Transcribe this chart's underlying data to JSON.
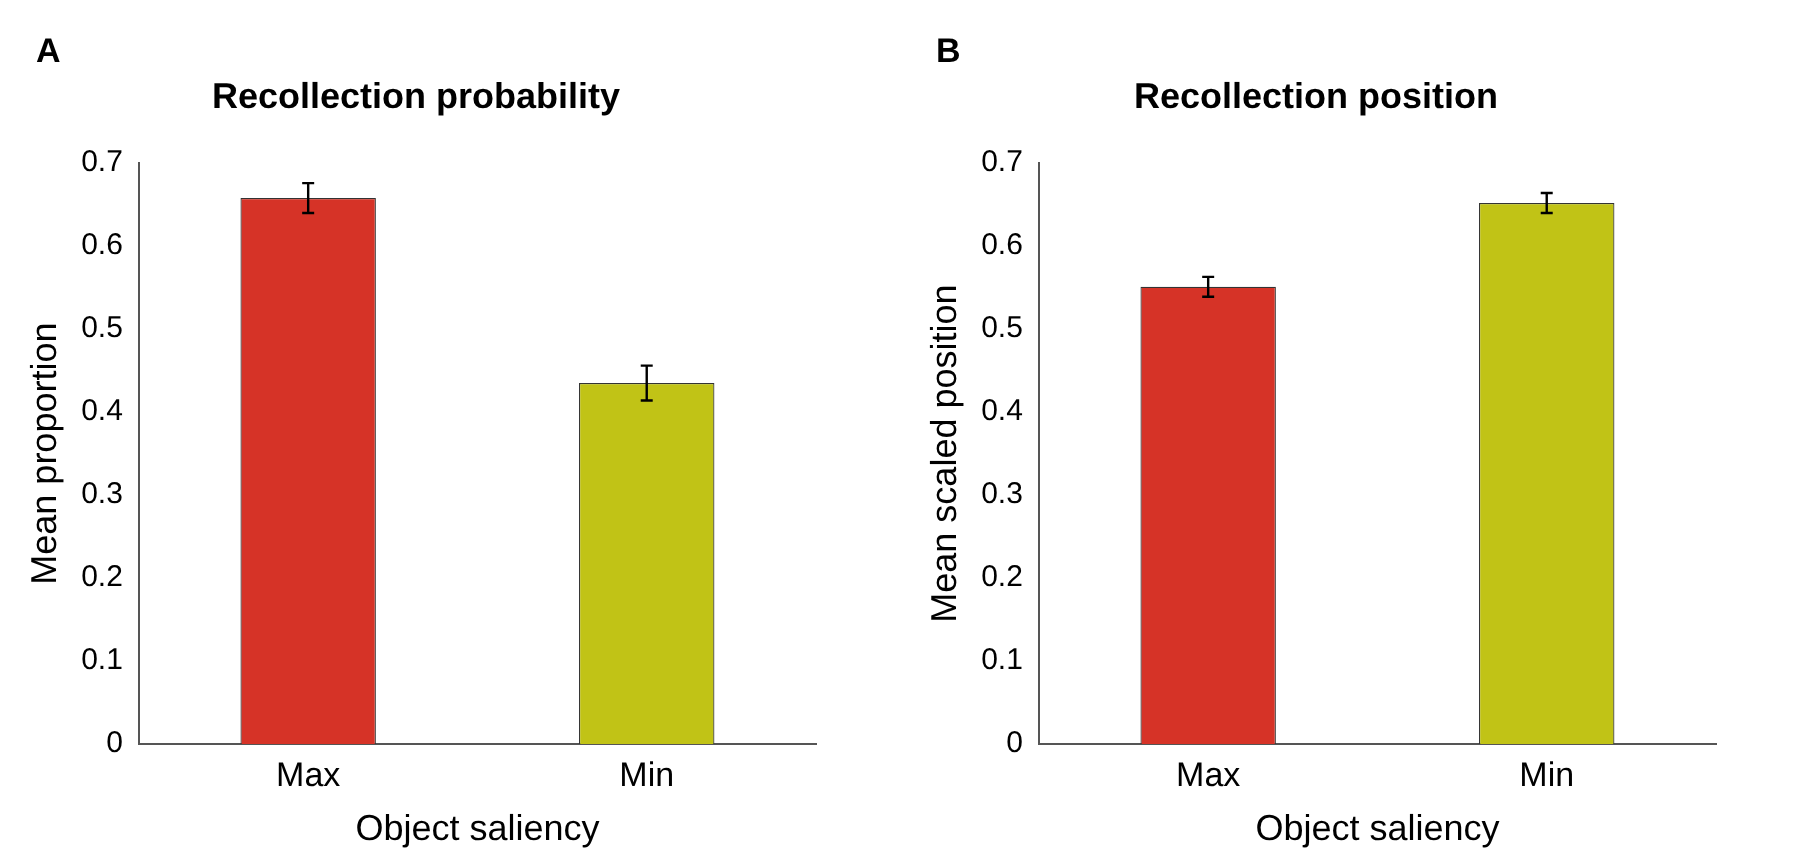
{
  "chart_data": [
    {
      "type": "bar",
      "title": "Recollection probability",
      "xlabel": "Object saliency",
      "ylabel": "Mean proportion",
      "annotations": [
        "A"
      ],
      "categories": [
        "Max",
        "Min"
      ],
      "values": [
        0.658,
        0.435
      ],
      "colors": [
        "#d63327",
        "#c1c316"
      ],
      "errors": [
        0.018,
        0.021
      ],
      "ylim": [
        0,
        0.7
      ],
      "yticks": [
        0,
        0.1,
        0.2,
        0.3,
        0.4,
        0.5,
        0.6,
        0.7
      ],
      "grid": false,
      "legend": false
    },
    {
      "type": "bar",
      "title": "Recollection position",
      "xlabel": "Object saliency",
      "ylabel": "Mean scaled position",
      "annotations": [
        "B"
      ],
      "categories": [
        "Max",
        "Min"
      ],
      "values": [
        0.551,
        0.652
      ],
      "colors": [
        "#d63327",
        "#c1c316"
      ],
      "errors": [
        0.012,
        0.012
      ],
      "ylim": [
        0,
        0.7
      ],
      "yticks": [
        0,
        0.1,
        0.2,
        0.3,
        0.4,
        0.5,
        0.6,
        0.7
      ],
      "grid": false,
      "legend": false
    }
  ]
}
